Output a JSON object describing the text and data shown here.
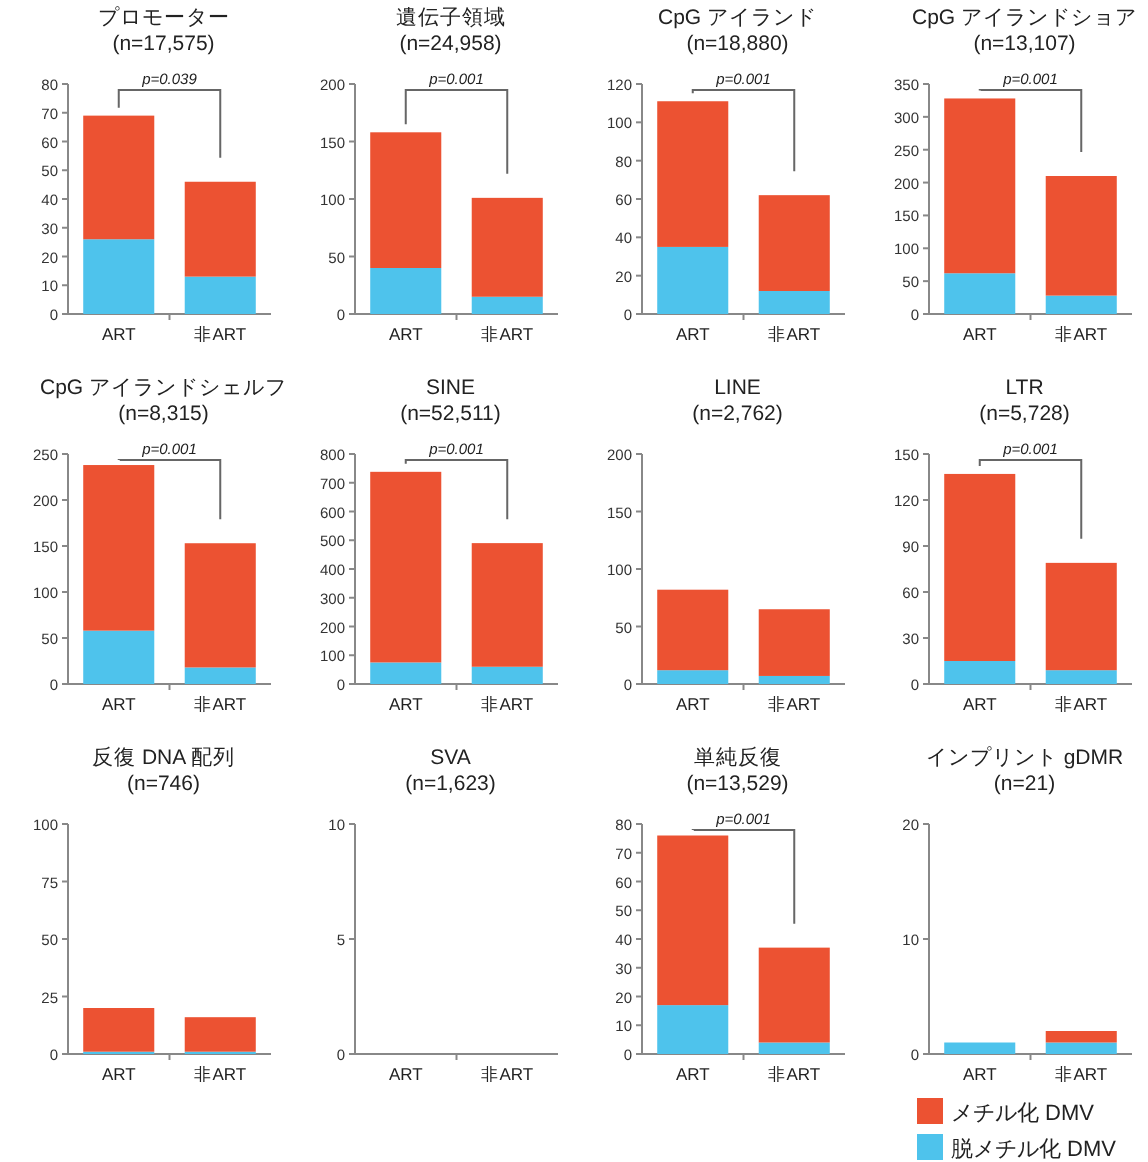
{
  "chart_data": [
    {
      "type": "bar",
      "title": "プロモーター",
      "subtitle": "(n=17,575)",
      "categories": [
        "ART",
        "非ART"
      ],
      "stacked": true,
      "ylim": [
        0,
        80
      ],
      "yticks": [
        0,
        10,
        20,
        30,
        40,
        50,
        60,
        70,
        80
      ],
      "annotations": [
        "p=0.039"
      ],
      "series": [
        {
          "color": "#4ec3ec",
          "values": [
            26,
            13
          ]
        },
        {
          "color": "#ec5232",
          "values": [
            43,
            33
          ]
        }
      ]
    },
    {
      "type": "bar",
      "title": "遺伝子領域",
      "subtitle": "(n=24,958)",
      "categories": [
        "ART",
        "非ART"
      ],
      "stacked": true,
      "ylim": [
        0,
        200
      ],
      "yticks": [
        0,
        50,
        100,
        150,
        200
      ],
      "annotations": [
        "p=0.001"
      ],
      "series": [
        {
          "color": "#4ec3ec",
          "values": [
            40,
            15
          ]
        },
        {
          "color": "#ec5232",
          "values": [
            118,
            86
          ]
        }
      ]
    },
    {
      "type": "bar",
      "title": "CpG アイランド",
      "subtitle": "(n=18,880)",
      "categories": [
        "ART",
        "非ART"
      ],
      "stacked": true,
      "ylim": [
        0,
        120
      ],
      "yticks": [
        0,
        20,
        40,
        60,
        80,
        100,
        120
      ],
      "annotations": [
        "p=0.001"
      ],
      "series": [
        {
          "color": "#4ec3ec",
          "values": [
            35,
            12
          ]
        },
        {
          "color": "#ec5232",
          "values": [
            76,
            50
          ]
        }
      ]
    },
    {
      "type": "bar",
      "title": "CpG アイランドショア",
      "subtitle": "(n=13,107)",
      "categories": [
        "ART",
        "非ART"
      ],
      "stacked": true,
      "ylim": [
        0,
        350
      ],
      "yticks": [
        0,
        50,
        100,
        150,
        200,
        250,
        300,
        350
      ],
      "annotations": [
        "p=0.001"
      ],
      "series": [
        {
          "color": "#4ec3ec",
          "values": [
            62,
            28
          ]
        },
        {
          "color": "#ec5232",
          "values": [
            266,
            182
          ]
        }
      ]
    },
    {
      "type": "bar",
      "title": "CpG アイランドシェルフ",
      "subtitle": "(n=8,315)",
      "categories": [
        "ART",
        "非ART"
      ],
      "stacked": true,
      "ylim": [
        0,
        250
      ],
      "yticks": [
        0,
        50,
        100,
        150,
        200,
        250
      ],
      "annotations": [
        "p=0.001"
      ],
      "series": [
        {
          "color": "#4ec3ec",
          "values": [
            58,
            18
          ]
        },
        {
          "color": "#ec5232",
          "values": [
            180,
            135
          ]
        }
      ]
    },
    {
      "type": "bar",
      "title": "SINE",
      "subtitle": "(n=52,511)",
      "categories": [
        "ART",
        "非ART"
      ],
      "stacked": true,
      "ylim": [
        0,
        800
      ],
      "yticks": [
        0,
        100,
        200,
        300,
        400,
        500,
        600,
        700,
        800
      ],
      "annotations": [
        "p=0.001"
      ],
      "series": [
        {
          "color": "#4ec3ec",
          "values": [
            75,
            60
          ]
        },
        {
          "color": "#ec5232",
          "values": [
            663,
            430
          ]
        }
      ]
    },
    {
      "type": "bar",
      "title": "LINE",
      "subtitle": "(n=2,762)",
      "categories": [
        "ART",
        "非ART"
      ],
      "stacked": true,
      "ylim": [
        0,
        200
      ],
      "yticks": [
        0,
        50,
        100,
        150,
        200
      ],
      "series": [
        {
          "color": "#4ec3ec",
          "values": [
            12,
            7
          ]
        },
        {
          "color": "#ec5232",
          "values": [
            70,
            58
          ]
        }
      ]
    },
    {
      "type": "bar",
      "title": "LTR",
      "subtitle": "(n=5,728)",
      "categories": [
        "ART",
        "非ART"
      ],
      "stacked": true,
      "ylim": [
        0,
        150
      ],
      "yticks": [
        0,
        30,
        60,
        90,
        120,
        150
      ],
      "annotations": [
        "p=0.001"
      ],
      "series": [
        {
          "color": "#4ec3ec",
          "values": [
            15,
            9
          ]
        },
        {
          "color": "#ec5232",
          "values": [
            122,
            70
          ]
        }
      ]
    },
    {
      "type": "bar",
      "title": "反復 DNA 配列",
      "subtitle": "(n=746)",
      "categories": [
        "ART",
        "非ART"
      ],
      "stacked": true,
      "ylim": [
        0,
        100
      ],
      "yticks": [
        0,
        25,
        50,
        75,
        100
      ],
      "series": [
        {
          "color": "#4ec3ec",
          "values": [
            1,
            1
          ]
        },
        {
          "color": "#ec5232",
          "values": [
            19,
            15
          ]
        }
      ]
    },
    {
      "type": "bar",
      "title": "SVA",
      "subtitle": "(n=1,623)",
      "categories": [
        "ART",
        "非ART"
      ],
      "stacked": true,
      "ylim": [
        0,
        10
      ],
      "yticks": [
        0,
        5,
        10
      ],
      "series": [
        {
          "color": "#4ec3ec",
          "values": [
            0,
            0
          ]
        },
        {
          "color": "#ec5232",
          "values": [
            0,
            0
          ]
        }
      ]
    },
    {
      "type": "bar",
      "title": "単純反復",
      "subtitle": "(n=13,529)",
      "categories": [
        "ART",
        "非ART"
      ],
      "stacked": true,
      "ylim": [
        0,
        80
      ],
      "yticks": [
        0,
        10,
        20,
        30,
        40,
        50,
        60,
        70,
        80
      ],
      "annotations": [
        "p=0.001"
      ],
      "series": [
        {
          "color": "#4ec3ec",
          "values": [
            17,
            4
          ]
        },
        {
          "color": "#ec5232",
          "values": [
            59,
            33
          ]
        }
      ]
    },
    {
      "type": "bar",
      "title": "インプリント gDMR",
      "subtitle": "(n=21)",
      "categories": [
        "ART",
        "非ART"
      ],
      "stacked": true,
      "ylim": [
        0,
        20
      ],
      "yticks": [
        0,
        10,
        20
      ],
      "legend": "bottom",
      "series": [
        {
          "name": "脱メチル化 DMV",
          "color": "#4ec3ec",
          "values": [
            1,
            1
          ]
        },
        {
          "name": "メチル化 DMV",
          "color": "#ec5232",
          "values": [
            0,
            1
          ]
        }
      ]
    }
  ]
}
